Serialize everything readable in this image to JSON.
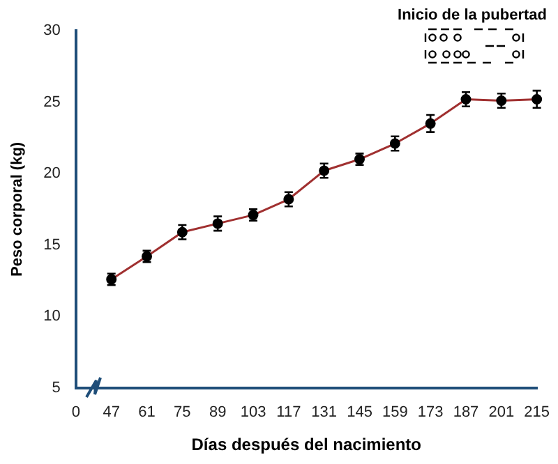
{
  "chart_data": {
    "type": "line",
    "xlabel": "Días después del nacimiento",
    "ylabel": "Peso corporal (kg)",
    "categories": [
      "0",
      "47",
      "61",
      "75",
      "89",
      "103",
      "117",
      "131",
      "145",
      "159",
      "173",
      "187",
      "201",
      "215"
    ],
    "series": [
      {
        "color": "#a03030",
        "values": [
          null,
          12.6,
          14.2,
          15.9,
          16.5,
          17.1,
          18.2,
          20.2,
          21.0,
          22.1,
          23.5,
          25.2,
          25.1,
          25.2
        ],
        "errors": [
          null,
          0.4,
          0.4,
          0.5,
          0.5,
          0.4,
          0.5,
          0.5,
          0.4,
          0.5,
          0.6,
          0.5,
          0.5,
          0.6
        ]
      }
    ],
    "ylim": [
      5,
      30
    ],
    "yticks": [
      5,
      10,
      15,
      20,
      25,
      30
    ],
    "grid": false,
    "legend": false,
    "marker": "circle",
    "line_style": "solid",
    "annotations": [
      "Inicio de la pubertad"
    ]
  }
}
